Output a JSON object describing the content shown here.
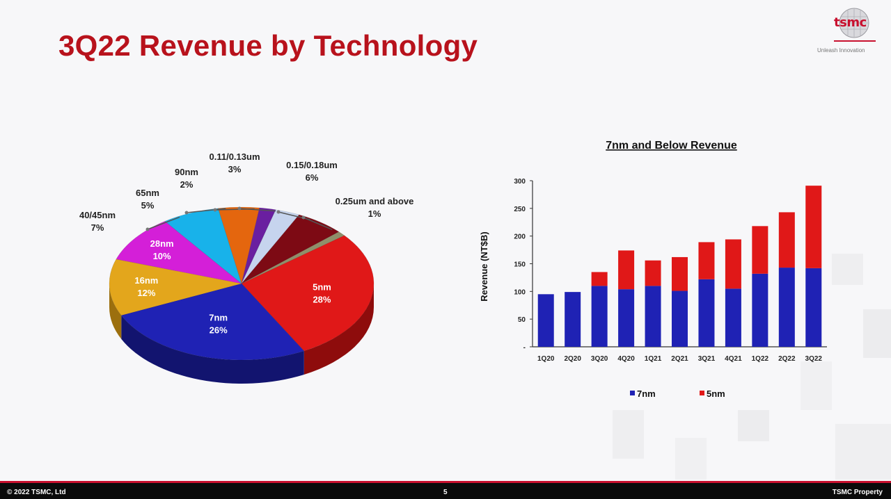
{
  "slide": {
    "title": "3Q22 Revenue by Technology"
  },
  "logo": {
    "wordmark": "tsmc",
    "tagline": "Unleash Innovation"
  },
  "footer": {
    "copyright": "© 2022 TSMC, Ltd",
    "page": "5",
    "property": "TSMC Property"
  },
  "colors": {
    "title": "#b8121c",
    "bar_7nm": "#1f22b4",
    "bar_5nm": "#e01818",
    "footer_bg": "#0a0a0a",
    "footer_rule": "#c8102e"
  },
  "chart_data": [
    {
      "type": "pie",
      "title": "",
      "slices": [
        {
          "label": "5nm",
          "value": 28,
          "pct_label": "28%",
          "color": "#e01818",
          "dark": "#8e0c0c",
          "label_style": "inside"
        },
        {
          "label": "7nm",
          "value": 26,
          "pct_label": "26%",
          "color": "#1f22b4",
          "dark": "#12146f",
          "label_style": "inside"
        },
        {
          "label": "16nm",
          "value": 12,
          "pct_label": "12%",
          "color": "#e3a61c",
          "dark": "#9c6f0e",
          "label_style": "inside"
        },
        {
          "label": "28nm",
          "value": 10,
          "pct_label": "10%",
          "color": "#d41fd8",
          "dark": "#8a1190",
          "label_style": "inside"
        },
        {
          "label": "40/45nm",
          "value": 7,
          "pct_label": "7%",
          "color": "#18b2ea",
          "dark": "#0d7aa3",
          "label_style": "outside"
        },
        {
          "label": "65nm",
          "value": 5,
          "pct_label": "5%",
          "color": "#e4660e",
          "dark": "#9b4306",
          "label_style": "outside"
        },
        {
          "label": "90nm",
          "value": 2,
          "pct_label": "2%",
          "color": "#6a1fa0",
          "dark": "#451268",
          "label_style": "outside"
        },
        {
          "label": "0.11/0.13um",
          "value": 3,
          "pct_label": "3%",
          "color": "#c6d4ee",
          "dark": "#8d9ab3",
          "label_style": "outside"
        },
        {
          "label": "0.15/0.18um",
          "value": 6,
          "pct_label": "6%",
          "color": "#7d0a14",
          "dark": "#4d050b",
          "label_style": "outside"
        },
        {
          "label": "0.25um and above",
          "value": 1,
          "pct_label": "1%",
          "color": "#8f8f6a",
          "dark": "#5e5e44",
          "label_style": "outside"
        }
      ]
    },
    {
      "type": "bar",
      "stacked": true,
      "title": "7nm and Below Revenue",
      "xlabel": "",
      "ylabel": "Revenue (NT$B)",
      "ylim": [
        0,
        300
      ],
      "yticks": [
        "-",
        "50",
        "100",
        "150",
        "200",
        "250",
        "300"
      ],
      "ytick_values": [
        0,
        50,
        100,
        150,
        200,
        250,
        300
      ],
      "categories": [
        "1Q20",
        "2Q20",
        "3Q20",
        "4Q20",
        "1Q21",
        "2Q21",
        "3Q21",
        "4Q21",
        "1Q22",
        "2Q22",
        "3Q22"
      ],
      "series": [
        {
          "name": "7nm",
          "color": "#1f22b4",
          "values": [
            95,
            99,
            110,
            104,
            110,
            101,
            122,
            105,
            132,
            143,
            142
          ]
        },
        {
          "name": "5nm",
          "color": "#e01818",
          "values": [
            0,
            0,
            25,
            70,
            46,
            61,
            67,
            89,
            86,
            100,
            149
          ]
        }
      ],
      "legend_position": "bottom"
    }
  ]
}
